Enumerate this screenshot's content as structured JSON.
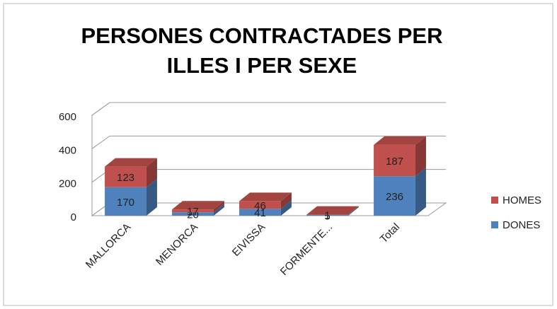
{
  "chart_data": {
    "type": "bar3d_stacked",
    "title": "PERSONES CONTRACTADES PER ILLES I PER SEXE",
    "categories": [
      "MALLORCA",
      "MENORCA",
      "EIVISSA",
      "FORMENTE...",
      "Total"
    ],
    "series": [
      {
        "name": "DONES",
        "color": "#4f81bd",
        "values": [
          170,
          20,
          41,
          5,
          236
        ]
      },
      {
        "name": "HOMES",
        "color": "#c0504d",
        "values": [
          123,
          17,
          46,
          1,
          187
        ]
      }
    ],
    "ylim": [
      0,
      600
    ],
    "yticks": [
      0,
      200,
      400,
      600
    ],
    "grid": true,
    "legend": "right"
  }
}
